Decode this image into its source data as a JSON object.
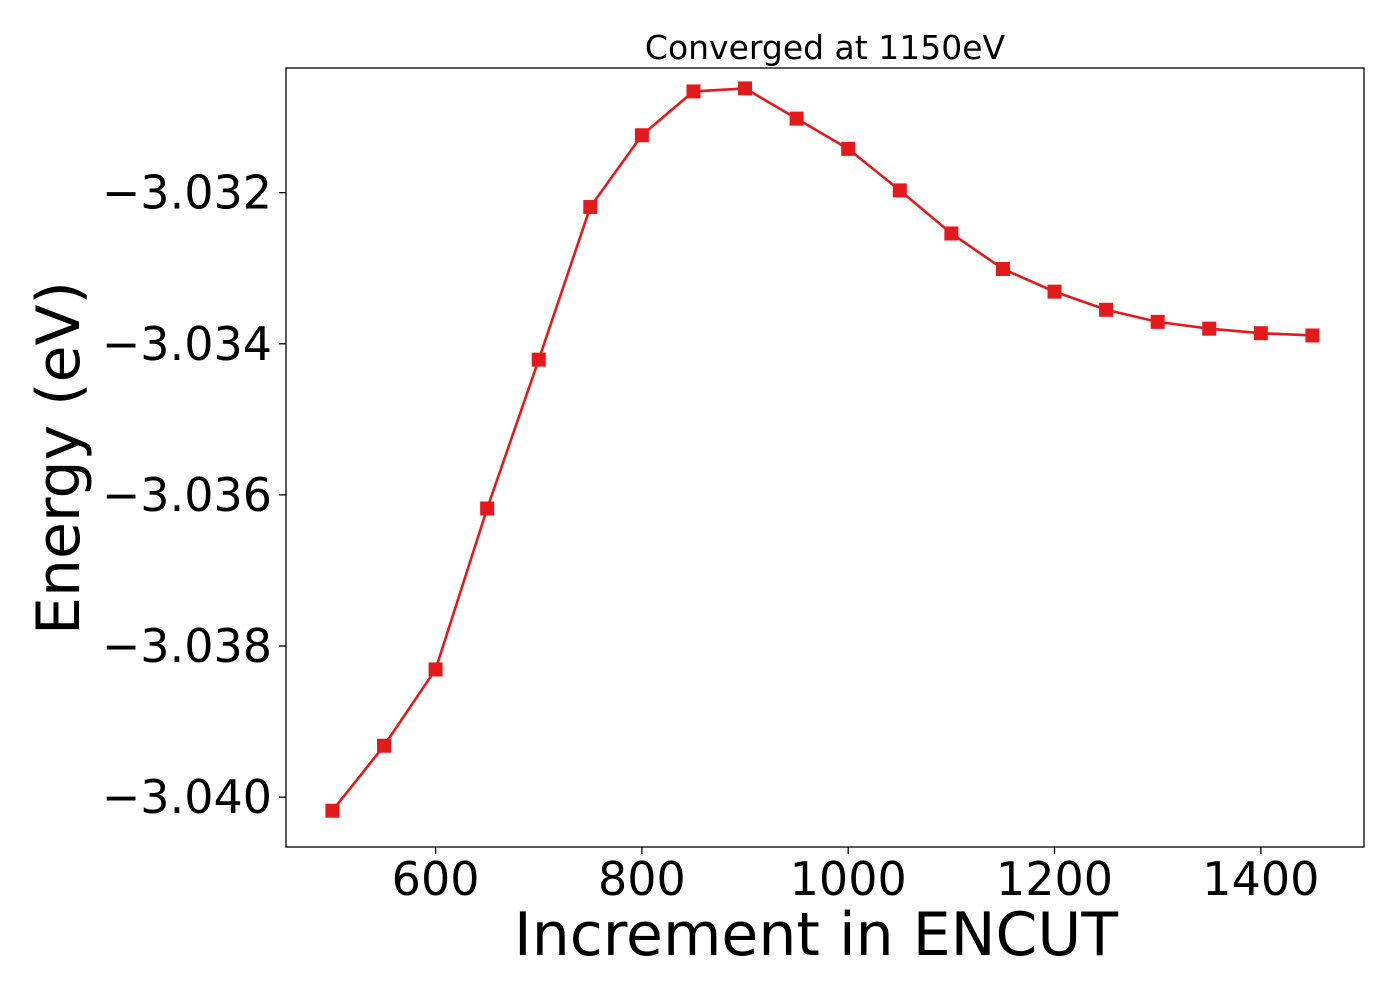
{
  "chart_data": {
    "type": "line",
    "title": "Converged at 1150eV",
    "xlabel": "Increment in ENCUT",
    "ylabel": "Energy (eV)",
    "xlim": [
      455,
      1500
    ],
    "ylim": [
      -3.04066,
      -3.03035
    ],
    "x_ticks": [
      {
        "value": 600,
        "label": "600"
      },
      {
        "value": 800,
        "label": "800"
      },
      {
        "value": 1000,
        "label": "1000"
      },
      {
        "value": 1200,
        "label": "1200"
      },
      {
        "value": 1400,
        "label": "1400"
      }
    ],
    "y_ticks": [
      {
        "value": -3.032,
        "label": "−3.032"
      },
      {
        "value": -3.034,
        "label": "−3.034"
      },
      {
        "value": -3.036,
        "label": "−3.036"
      },
      {
        "value": -3.038,
        "label": "−3.038"
      },
      {
        "value": -3.04,
        "label": "−3.040"
      }
    ],
    "grid": false,
    "series": [
      {
        "color": "#e31a1c",
        "marker": "square",
        "x": [
          500,
          550,
          600,
          650,
          700,
          750,
          800,
          850,
          900,
          950,
          1000,
          1050,
          1100,
          1150,
          1200,
          1250,
          1300,
          1350,
          1400,
          1450
        ],
        "y": [
          -3.04018,
          -3.03932,
          -3.03831,
          -3.03618,
          -3.03421,
          -3.03219,
          -3.03124,
          -3.03066,
          -3.03062,
          -3.03102,
          -3.03142,
          -3.03197,
          -3.03254,
          -3.03301,
          -3.03331,
          -3.03355,
          -3.03371,
          -3.0338,
          -3.03386,
          -3.03389
        ]
      }
    ]
  }
}
